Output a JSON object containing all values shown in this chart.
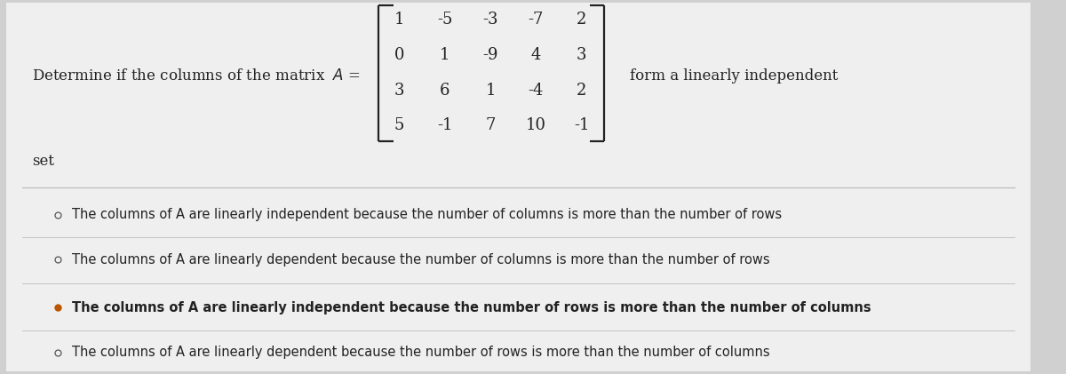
{
  "bg_color": "#d0d0d0",
  "card_color": "#efefef",
  "question_text": "Determine if the columns of the matrix  $A$ =",
  "matrix_rows": [
    [
      "1",
      "-5",
      "-3",
      "-7",
      "2"
    ],
    [
      "0",
      "1",
      "-9",
      "4",
      "3"
    ],
    [
      "3",
      "6",
      "1",
      "-4",
      "2"
    ],
    [
      "5",
      "-1",
      "7",
      "10",
      "-1"
    ]
  ],
  "suffix_text": "form a linearly independent",
  "suffix2_text": "set",
  "options": [
    {
      "text": "The columns of A are linearly independent because the number of columns is more than the number of rows",
      "selected": false
    },
    {
      "text": "The columns of A are linearly dependent because the number of columns is more than the number of rows",
      "selected": false
    },
    {
      "text": "The columns of A are linearly independent because the number of rows is more than the number of columns",
      "selected": true
    },
    {
      "text": "The columns of A are linearly dependent because the number of rows is more than the number of columns",
      "selected": false
    }
  ],
  "option_fontsize": 10.5,
  "question_fontsize": 12,
  "matrix_fontsize": 13,
  "text_color": "#222222",
  "divider_color": "#bbbbbb",
  "bullet_color": "#555555",
  "selected_bullet_color": "#bb5500"
}
